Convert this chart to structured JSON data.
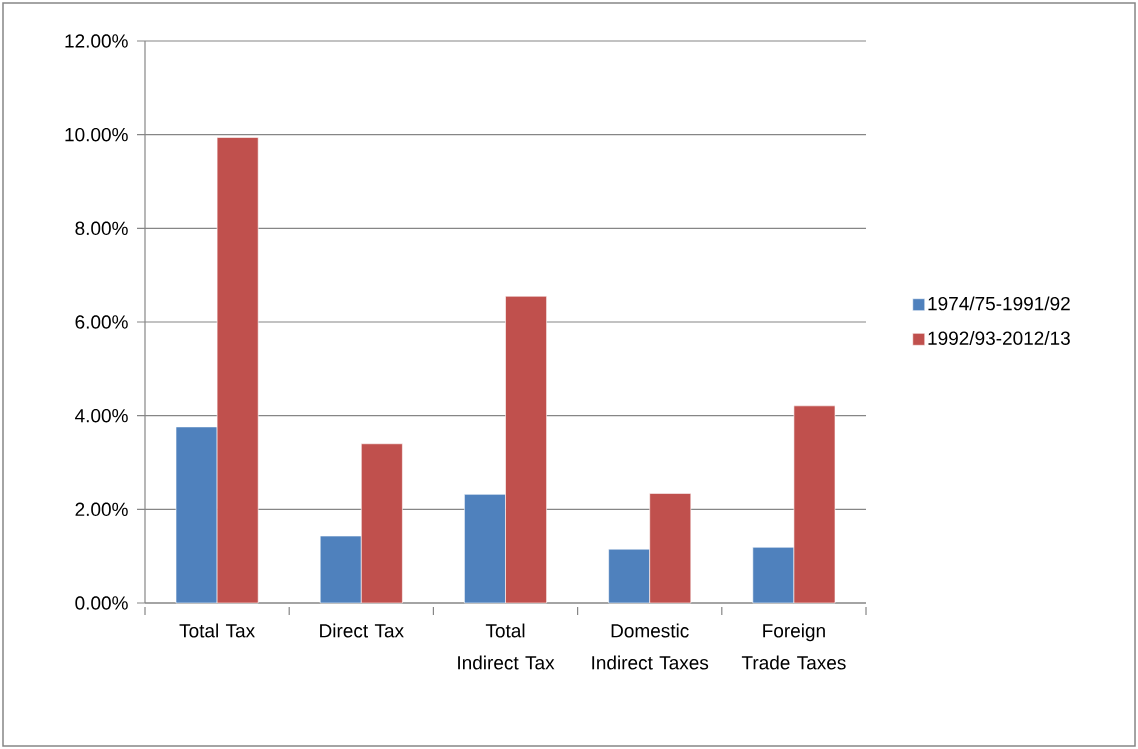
{
  "chart_data": {
    "type": "bar",
    "categories": [
      "Total Tax",
      "Direct Tax",
      "Total Indirect Tax",
      "Domestic Indirect Taxes",
      "Foreign Trade Taxes"
    ],
    "series": [
      {
        "name": "1974/75-1991/92",
        "color": "#4f81bd",
        "values": [
          3.76,
          1.43,
          2.32,
          1.15,
          1.19
        ]
      },
      {
        "name": "1992/93-2012/13",
        "color": "#c0504d",
        "values": [
          9.94,
          3.4,
          6.55,
          2.34,
          4.21
        ]
      }
    ],
    "ylim": [
      0,
      12
    ],
    "yticks": [
      {
        "value": 0,
        "label": "0.00%"
      },
      {
        "value": 2,
        "label": "2.00%"
      },
      {
        "value": 4,
        "label": "4.00%"
      },
      {
        "value": 6,
        "label": "6.00%"
      },
      {
        "value": 8,
        "label": "8.00%"
      },
      {
        "value": 10,
        "label": "10.00%"
      },
      {
        "value": 12,
        "label": "12.00%"
      }
    ],
    "grid": "y",
    "legend": "right"
  }
}
